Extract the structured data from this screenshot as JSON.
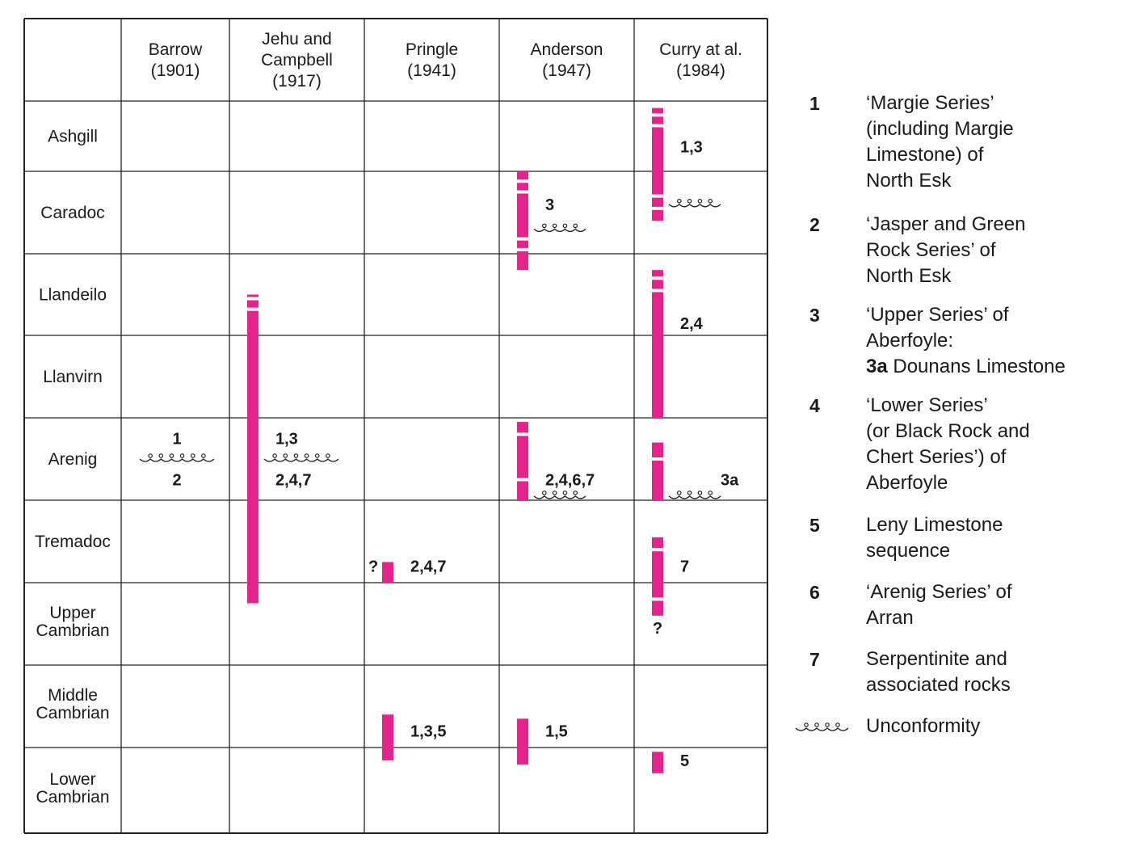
{
  "chart_data": {
    "type": "table",
    "columns": [
      {
        "line1": "Barrow",
        "line2": "(1901)",
        "line3": ""
      },
      {
        "line1": "Jehu and",
        "line2": "Campbell",
        "line3": "(1917)"
      },
      {
        "line1": "Pringle",
        "line2": "(1941)",
        "line3": ""
      },
      {
        "line1": "Anderson",
        "line2": "(1947)",
        "line3": ""
      },
      {
        "line1": "Curry at al.",
        "line2": "(1984)",
        "line3": ""
      }
    ],
    "rows": [
      {
        "line1": "Ashgill",
        "line2": ""
      },
      {
        "line1": "Caradoc",
        "line2": ""
      },
      {
        "line1": "Llandeilo",
        "line2": ""
      },
      {
        "line1": "Llanvirn",
        "line2": ""
      },
      {
        "line1": "Arenig",
        "line2": ""
      },
      {
        "line1": "Tremadoc",
        "line2": ""
      },
      {
        "line1": "Upper",
        "line2": "Cambrian"
      },
      {
        "line1": "Middle",
        "line2": "Cambrian"
      },
      {
        "line1": "Lower",
        "line2": "Cambrian"
      }
    ],
    "bar_color": "#e4238c",
    "bars": [
      {
        "column": 1,
        "from_row": 2.5,
        "to_row": 6.25
      },
      {
        "column": 2,
        "from_row": 5.75,
        "to_row": 6.0
      },
      {
        "column": 2,
        "from_row": 7.6,
        "to_row": 8.15
      },
      {
        "column": 3,
        "from_row": 1.0,
        "to_row": 2.2
      },
      {
        "column": 3,
        "from_row": 4.05,
        "to_row": 5.0
      },
      {
        "column": 3,
        "from_row": 7.65,
        "to_row": 8.2
      },
      {
        "column": 4,
        "from_row": 0.1,
        "to_row": 1.6
      },
      {
        "column": 4,
        "from_row": 2.2,
        "to_row": 4.05
      },
      {
        "column": 4,
        "from_row": 4.3,
        "to_row": 5.0
      },
      {
        "column": 4,
        "from_row": 5.45,
        "to_row": 6.4
      },
      {
        "column": 4,
        "from_row": 8.05,
        "to_row": 8.3
      }
    ],
    "labels": [
      {
        "text": "1",
        "column": 0,
        "row": 4.25,
        "pos": "center"
      },
      {
        "text": "2",
        "column": 0,
        "row": 4.75,
        "pos": "center"
      },
      {
        "text": "1,3",
        "column": 1,
        "row": 4.25,
        "pos": "right"
      },
      {
        "text": "2,4,7",
        "column": 1,
        "row": 4.75,
        "pos": "right"
      },
      {
        "text": "?",
        "column": 2,
        "row": 5.8,
        "pos": "left"
      },
      {
        "text": "2,4,7",
        "column": 2,
        "row": 5.8,
        "pos": "right"
      },
      {
        "text": "1,3,5",
        "column": 2,
        "row": 7.8,
        "pos": "right"
      },
      {
        "text": "3",
        "column": 3,
        "row": 1.4,
        "pos": "right"
      },
      {
        "text": "2,4,6,7",
        "column": 3,
        "row": 4.75,
        "pos": "right"
      },
      {
        "text": "1,5",
        "column": 3,
        "row": 7.8,
        "pos": "right"
      },
      {
        "text": "1,3",
        "column": 4,
        "row": 0.65,
        "pos": "right"
      },
      {
        "text": "2,4",
        "column": 4,
        "row": 2.85,
        "pos": "right"
      },
      {
        "text": "3a",
        "column": 4,
        "row": 4.75,
        "pos": "far-right"
      },
      {
        "text": "7",
        "column": 4,
        "row": 5.8,
        "pos": "right"
      },
      {
        "text": "?",
        "column": 4,
        "row": 6.55,
        "pos": "below"
      },
      {
        "text": "5",
        "column": 4,
        "row": 8.15,
        "pos": "right"
      }
    ],
    "unconformities": [
      {
        "column": 0,
        "row": 4.5,
        "pos": "center",
        "size": "long"
      },
      {
        "column": 1,
        "row": 4.5,
        "pos": "right",
        "size": "long"
      },
      {
        "column": 3,
        "row": 1.7,
        "pos": "right",
        "size": "short"
      },
      {
        "column": 3,
        "row": 4.95,
        "pos": "right",
        "size": "short"
      },
      {
        "column": 4,
        "row": 1.4,
        "pos": "right",
        "size": "short"
      },
      {
        "column": 4,
        "row": 4.95,
        "pos": "right",
        "size": "short"
      }
    ]
  },
  "legend": {
    "items": [
      {
        "num": "1",
        "lines": [
          "‘Margie Series’",
          "(including Margie",
          "Limestone) of",
          "North Esk"
        ]
      },
      {
        "num": "2",
        "lines": [
          "‘Jasper and Green",
          "Rock Series’ of",
          "North Esk"
        ]
      },
      {
        "num": "3",
        "lines": [
          "‘Upper Series’ of",
          "Aberfoyle:"
        ],
        "extra": {
          "lead": "3a",
          "text": " Dounans Limestone"
        }
      },
      {
        "num": "4",
        "lines": [
          "‘Lower Series’",
          "(or Black Rock and",
          "Chert Series’) of",
          "Aberfoyle"
        ]
      },
      {
        "num": "5",
        "lines": [
          "Leny Limestone",
          "sequence"
        ]
      },
      {
        "num": "6",
        "lines": [
          "‘Arenig Series’ of",
          "Arran"
        ]
      },
      {
        "num": "7",
        "lines": [
          "Serpentinite and",
          "associated rocks"
        ]
      }
    ],
    "unconformity_label": "Unconformity"
  }
}
